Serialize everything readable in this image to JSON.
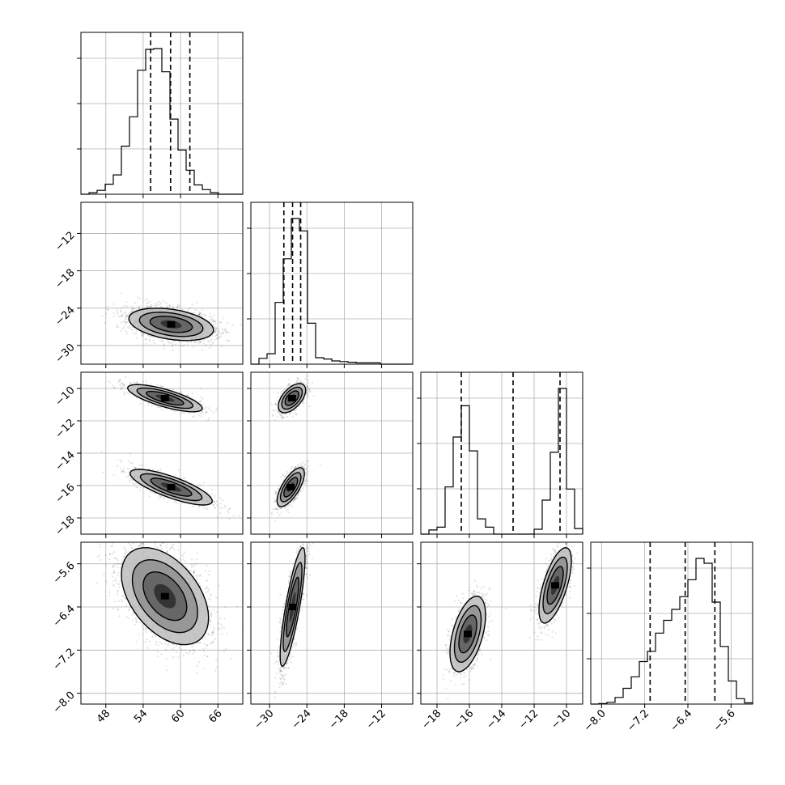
{
  "chart_data": {
    "type": "corner",
    "grid": true,
    "parameters": [
      {
        "range": [
          44,
          70
        ],
        "ticks": [
          48,
          54,
          60,
          66
        ],
        "tick_labels": [
          "48",
          "54",
          "60",
          "66"
        ],
        "quantiles": [
          55.2,
          58.4,
          61.5
        ],
        "median": 58.4,
        "sd": 3.2
      },
      {
        "range": [
          -33,
          -7
        ],
        "ticks": [
          -30,
          -24,
          -18,
          -12
        ],
        "tick_labels": [
          "−30",
          "−24",
          "−18",
          "−12"
        ],
        "quantiles": [
          -27.7,
          -26.3,
          -25.0
        ],
        "median": -26.4,
        "sd": 1.2
      },
      {
        "range": [
          -19,
          -9
        ],
        "ticks": [
          -18,
          -16,
          -14,
          -12,
          -10
        ],
        "tick_labels": [
          "−18",
          "−16",
          "−14",
          "−12",
          "−10"
        ],
        "quantiles": [
          -16.5,
          -13.3,
          -10.4
        ],
        "modes": [
          -16.0,
          -10.6
        ],
        "mode_sd": 0.55
      },
      {
        "range": [
          -8.2,
          -5.2
        ],
        "ticks": [
          -8.0,
          -7.2,
          -6.4,
          -5.6
        ],
        "tick_labels": [
          "−8.0",
          "−7.2",
          "−6.4",
          "−5.6"
        ],
        "quantiles": [
          -7.1,
          -6.45,
          -5.9
        ],
        "median": -6.45,
        "sd": 0.4
      }
    ],
    "histograms": [
      {
        "param": 0,
        "edges": [
          44,
          70
        ],
        "counts": [
          0,
          2,
          5,
          13,
          25,
          62,
          100,
          160,
          187,
          188,
          158,
          97,
          57,
          31,
          12,
          6,
          2,
          0,
          0,
          0
        ]
      },
      {
        "param": 1,
        "edges": [
          -33,
          -7
        ],
        "counts": [
          0,
          9,
          16,
          95,
          162,
          224,
          205,
          63,
          10,
          8,
          5,
          4,
          3,
          2,
          2,
          2,
          0,
          0,
          0,
          0
        ]
      },
      {
        "param": 2,
        "edges": [
          -19,
          -9
        ],
        "counts": [
          0,
          6,
          10,
          68,
          140,
          185,
          120,
          22,
          10,
          0,
          0,
          0,
          0,
          0,
          7,
          49,
          118,
          210,
          65,
          8
        ]
      },
      {
        "param": 3,
        "edges": [
          -8.2,
          -5.2
        ],
        "counts": [
          0,
          1,
          3,
          11,
          26,
          45,
          70,
          87,
          117,
          138,
          156,
          177,
          205,
          240,
          232,
          168,
          95,
          38,
          9,
          2
        ]
      }
    ],
    "pairs": [
      {
        "x_param": 0,
        "y_param": 1,
        "center": [
          58.5,
          -26.6
        ],
        "sd": [
          3.4,
          1.3
        ],
        "rho": -0.35,
        "n": 2200
      },
      {
        "x_param": 0,
        "y_param": 2,
        "mixture": [
          {
            "center": [
              57.5,
              -10.6
            ],
            "sd": [
              3.0,
              0.42
            ],
            "rho": -0.75,
            "n": 900
          },
          {
            "center": [
              58.5,
              -16.1
            ],
            "sd": [
              3.3,
              0.55
            ],
            "rho": -0.78,
            "n": 1000
          }
        ]
      },
      {
        "x_param": 1,
        "y_param": 2,
        "mixture": [
          {
            "center": [
              -26.4,
              -10.6
            ],
            "sd": [
              1.1,
              0.45
            ],
            "rho": 0.55,
            "n": 900
          },
          {
            "center": [
              -26.6,
              -16.1
            ],
            "sd": [
              1.1,
              0.6
            ],
            "rho": 0.7,
            "n": 1000
          }
        ]
      },
      {
        "x_param": 0,
        "y_param": 3,
        "center": [
          57.5,
          -6.2
        ],
        "sd": [
          3.5,
          0.45
        ],
        "rho": -0.45,
        "n": 2600
      },
      {
        "x_param": 1,
        "y_param": 3,
        "center": [
          -26.3,
          -6.4
        ],
        "sd": [
          1.0,
          0.55
        ],
        "rho": 0.82,
        "n": 1500
      },
      {
        "x_param": 2,
        "y_param": 3,
        "mixture": [
          {
            "center": [
              -16.1,
              -6.9
            ],
            "sd": [
              0.55,
              0.35
            ],
            "rho": 0.5,
            "n": 1100
          },
          {
            "center": [
              -10.7,
              -6.0
            ],
            "sd": [
              0.5,
              0.35
            ],
            "rho": 0.65,
            "n": 1100
          }
        ]
      }
    ]
  }
}
